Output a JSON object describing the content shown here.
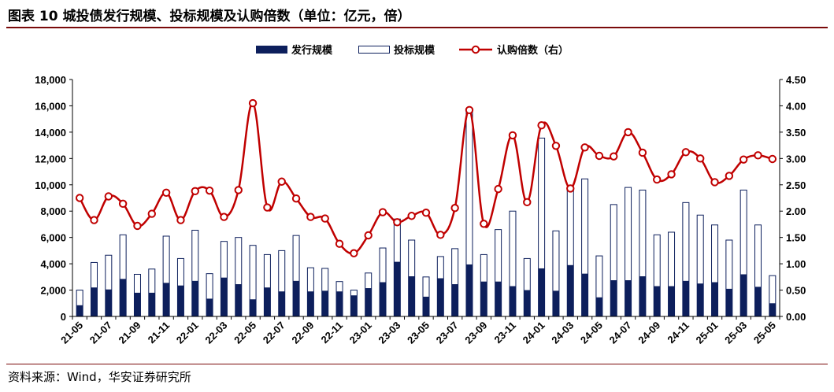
{
  "title": "图表 10 城投债发行规模、投标规模及认购倍数（单位：亿元，倍）",
  "source": "资料来源：Wind，华安证券研究所",
  "colors": {
    "issue": "#0d1f5c",
    "bid_stroke": "#0d1f5c",
    "ratio": "#c00000",
    "rule": "#7a0a0a"
  },
  "chart_data": {
    "type": "bar",
    "legend_position": "top-center",
    "grid": false,
    "categories": [
      "21-05",
      "21-06",
      "21-07",
      "21-08",
      "21-09",
      "21-10",
      "21-11",
      "21-12",
      "22-01",
      "22-02",
      "22-03",
      "22-04",
      "22-05",
      "22-06",
      "22-07",
      "22-08",
      "22-09",
      "22-10",
      "22-11",
      "22-12",
      "23-01",
      "23-02",
      "23-03",
      "23-04",
      "23-05",
      "23-06",
      "23-07",
      "23-08",
      "23-09",
      "23-10",
      "23-11",
      "23-12",
      "24-01",
      "24-02",
      "24-03",
      "24-04",
      "24-05",
      "24-06",
      "24-07",
      "24-08",
      "24-09",
      "24-10",
      "24-11",
      "24-12",
      "25-01",
      "25-02",
      "25-03",
      "25-04",
      "25-05"
    ],
    "tick_labels": [
      "21-05",
      "21-07",
      "21-09",
      "21-11",
      "22-01",
      "22-03",
      "22-05",
      "22-07",
      "22-09",
      "22-11",
      "23-01",
      "23-03",
      "23-05",
      "23-07",
      "23-09",
      "23-11",
      "24-01",
      "24-03",
      "24-05",
      "24-07",
      "24-09",
      "24-11",
      "25-01",
      "25-03",
      "25-05"
    ],
    "y_left": {
      "min": 0,
      "max": 18000,
      "step": 2000,
      "ticks": [
        "0",
        "2,000",
        "4,000",
        "6,000",
        "8,000",
        "10,000",
        "12,000",
        "14,000",
        "16,000",
        "18,000"
      ]
    },
    "y_right": {
      "min": 0,
      "max": 4.5,
      "step": 0.5,
      "ticks": [
        "0.00",
        "0.50",
        "1.00",
        "1.50",
        "2.00",
        "2.50",
        "3.00",
        "3.50",
        "4.00",
        "4.50"
      ]
    },
    "series": [
      {
        "name": "发行规模",
        "type": "bar",
        "axis": "left",
        "values": [
          850,
          2200,
          2050,
          2850,
          1800,
          1800,
          2550,
          2350,
          2700,
          1350,
          2950,
          2450,
          1300,
          2200,
          1900,
          2700,
          1900,
          1950,
          1900,
          1600,
          2150,
          2600,
          4150,
          3050,
          1500,
          2900,
          2450,
          3950,
          2650,
          2650,
          2300,
          2000,
          3650,
          1950,
          3900,
          3250,
          1450,
          2750,
          2750,
          3050,
          2300,
          2300,
          2700,
          2500,
          2600,
          2100,
          3200,
          2250,
          1000
        ]
      },
      {
        "name": "投标规模",
        "type": "bar",
        "axis": "left",
        "values": [
          2000,
          4100,
          4650,
          6200,
          3200,
          3600,
          6100,
          4400,
          6550,
          3250,
          5700,
          6000,
          5400,
          4700,
          5000,
          6150,
          3700,
          3650,
          2650,
          2000,
          3300,
          5200,
          7400,
          5800,
          3000,
          4550,
          5150,
          15800,
          4700,
          6600,
          8000,
          4400,
          13550,
          6500,
          9600,
          10450,
          4600,
          8500,
          9800,
          9600,
          6200,
          6400,
          8650,
          7700,
          6950,
          5800,
          9600,
          6950,
          3100
        ]
      },
      {
        "name": "认购倍数（右）",
        "type": "line",
        "axis": "right",
        "values": [
          2.25,
          1.83,
          2.28,
          2.14,
          1.72,
          1.95,
          2.35,
          1.83,
          2.38,
          2.39,
          1.89,
          2.4,
          4.05,
          2.07,
          2.56,
          2.24,
          1.89,
          1.86,
          1.38,
          1.2,
          1.54,
          1.98,
          1.79,
          1.91,
          1.97,
          1.55,
          2.06,
          3.92,
          1.76,
          2.42,
          3.44,
          2.17,
          3.63,
          3.24,
          2.43,
          3.21,
          3.05,
          3.04,
          3.5,
          3.11,
          2.6,
          2.7,
          3.12,
          3.0,
          2.55,
          2.67,
          2.98,
          3.06,
          2.99
        ]
      }
    ]
  }
}
